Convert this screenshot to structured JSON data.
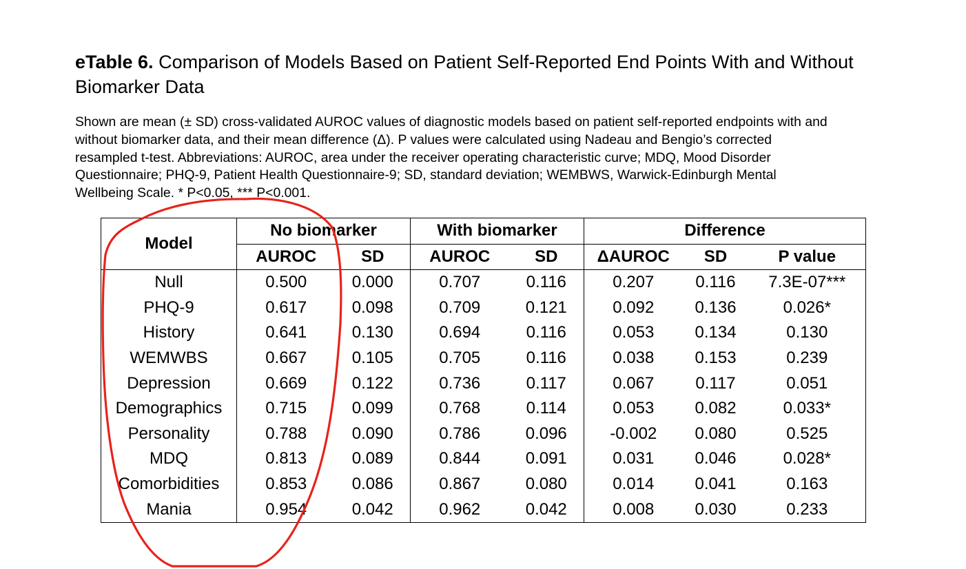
{
  "title": {
    "label": "eTable 6.",
    "text": " Comparison of Models Based on Patient Self-Reported End Points With and Without Biomarker Data"
  },
  "caption": {
    "lines": [
      "Shown are mean (± SD) cross-validated AUROC values of diagnostic models based on patient self-reported endpoints with and",
      "without biomarker data, and their mean difference (Δ). P values were calculated using Nadeau and Bengio’s corrected",
      "resampled t-test. Abbreviations: AUROC, area under the receiver operating characteristic curve; MDQ, Mood Disorder",
      "Questionnaire; PHQ-9, Patient Health Questionnaire-9; SD, standard deviation; WEMBWS, Warwick-Edinburgh Mental",
      "Wellbeing Scale. * P<0.05, *** P<0.001."
    ]
  },
  "table": {
    "header_model": "Model",
    "groups": [
      "No biomarker",
      "With biomarker",
      "Difference"
    ],
    "subheaders": [
      "AUROC",
      "SD",
      "AUROC",
      "SD",
      "ΔAUROC",
      "SD",
      "P value"
    ],
    "rows": [
      [
        "Null",
        "0.500",
        "0.000",
        "0.707",
        "0.116",
        "0.207",
        "0.116",
        "7.3E-07***"
      ],
      [
        "PHQ-9",
        "0.617",
        "0.098",
        "0.709",
        "0.121",
        "0.092",
        "0.136",
        "0.026*"
      ],
      [
        "History",
        "0.641",
        "0.130",
        "0.694",
        "0.116",
        "0.053",
        "0.134",
        "0.130"
      ],
      [
        "WEMWBS",
        "0.667",
        "0.105",
        "0.705",
        "0.116",
        "0.038",
        "0.153",
        "0.239"
      ],
      [
        "Depression",
        "0.669",
        "0.122",
        "0.736",
        "0.117",
        "0.067",
        "0.117",
        "0.051"
      ],
      [
        "Demographics",
        "0.715",
        "0.099",
        "0.768",
        "0.114",
        "0.053",
        "0.082",
        "0.033*"
      ],
      [
        "Personality",
        "0.788",
        "0.090",
        "0.786",
        "0.096",
        "-0.002",
        "0.080",
        "0.525"
      ],
      [
        "MDQ",
        "0.813",
        "0.089",
        "0.844",
        "0.091",
        "0.031",
        "0.046",
        "0.028*"
      ],
      [
        "Comorbidities",
        "0.853",
        "0.086",
        "0.867",
        "0.080",
        "0.014",
        "0.041",
        "0.163"
      ],
      [
        "Mania",
        "0.954",
        "0.042",
        "0.962",
        "0.042",
        "0.008",
        "0.030",
        "0.233"
      ]
    ]
  },
  "annotation": {
    "color": "#e8221b",
    "shape": "hand-drawn-loop-around-model-and-no-biomarker-auroc-columns"
  }
}
